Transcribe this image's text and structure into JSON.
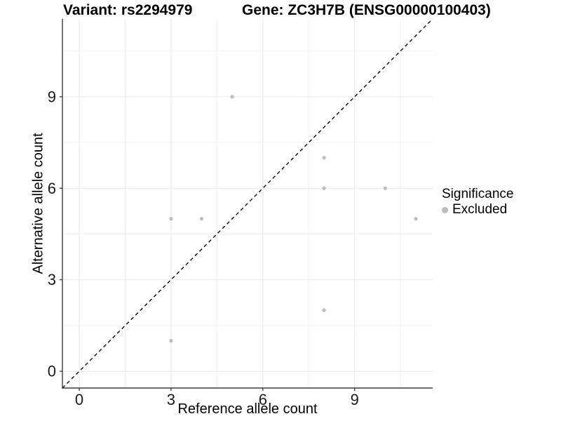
{
  "header": {
    "variant_title": "Variant: rs2294979",
    "gene_title": "Gene: ZC3H7B (ENSG00000100403)"
  },
  "chart_data": {
    "type": "scatter",
    "xlabel": "Reference allele count",
    "ylabel": "Alternative allele count",
    "xlim": [
      -0.55,
      11.55
    ],
    "ylim": [
      -0.55,
      11.55
    ],
    "x_ticks": [
      0,
      3,
      6,
      9
    ],
    "y_ticks": [
      0,
      3,
      6,
      9
    ],
    "minor_ticks": [
      1.5,
      4.5,
      7.5,
      10.5
    ],
    "grid": true,
    "series": [
      {
        "name": "Excluded",
        "points": [
          {
            "x": 3,
            "y": 1
          },
          {
            "x": 3,
            "y": 5
          },
          {
            "x": 4,
            "y": 5
          },
          {
            "x": 5,
            "y": 9
          },
          {
            "x": 8,
            "y": 2
          },
          {
            "x": 8,
            "y": 6
          },
          {
            "x": 8,
            "y": 7
          },
          {
            "x": 10,
            "y": 6
          },
          {
            "x": 11,
            "y": 5
          }
        ]
      }
    ],
    "reference_line": {
      "slope": 1,
      "intercept": 0,
      "style": "dashed"
    },
    "legend": {
      "title": "Significance",
      "position": "right",
      "items": [
        {
          "label": "Excluded"
        }
      ]
    }
  },
  "colors": {
    "point": "#bdbdbd",
    "grid_major": "#ebebeb",
    "grid_minor": "#f2f2f2",
    "axis": "#3c3c3c",
    "tick_text": "#1a1a1a",
    "reference_line": "#000000",
    "background": "#ffffff"
  }
}
